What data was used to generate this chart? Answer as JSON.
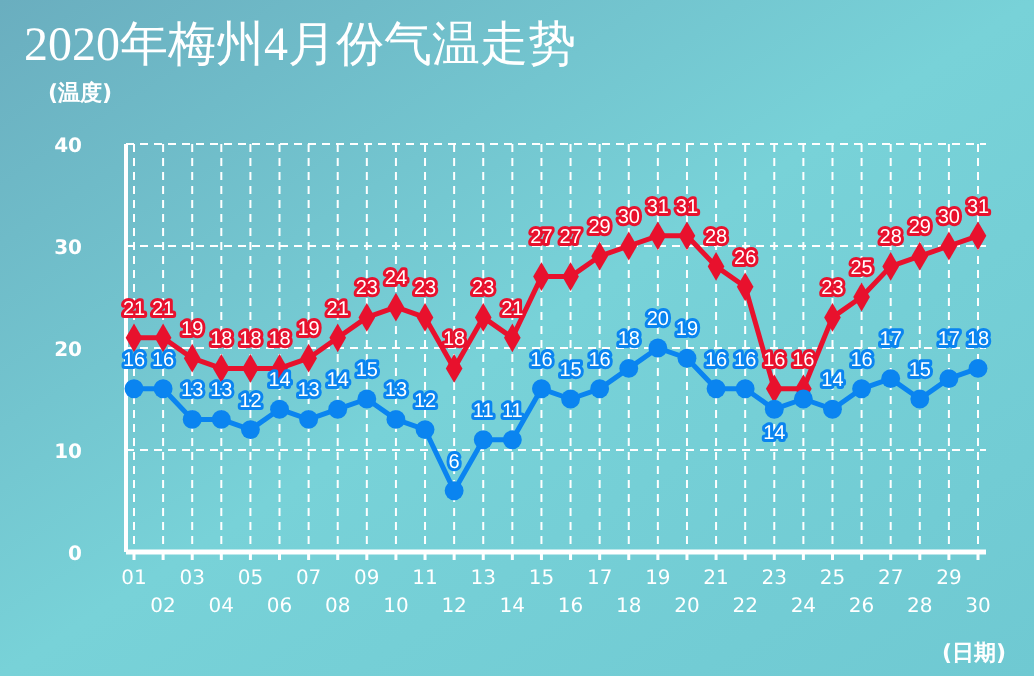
{
  "chart_data": {
    "type": "line",
    "title": "2020年梅州4月份气温走势",
    "ylabel": "(温度)",
    "xlabel": "(日期)",
    "categories": [
      "01",
      "02",
      "03",
      "04",
      "05",
      "06",
      "07",
      "08",
      "09",
      "10",
      "11",
      "12",
      "13",
      "14",
      "15",
      "16",
      "17",
      "18",
      "19",
      "20",
      "21",
      "22",
      "23",
      "24",
      "25",
      "26",
      "27",
      "28",
      "29",
      "30"
    ],
    "series": [
      {
        "color": "#e8112d",
        "marker": "diamond",
        "values": [
          21,
          21,
          19,
          18,
          18,
          18,
          19,
          21,
          23,
          24,
          23,
          18,
          23,
          21,
          27,
          27,
          29,
          30,
          31,
          31,
          28,
          26,
          16,
          16,
          23,
          25,
          28,
          29,
          30,
          31
        ],
        "value_labels": [
          "21",
          "21",
          "19",
          "18",
          "18",
          "18",
          "19",
          "21",
          "23",
          "24",
          "23",
          "18",
          "23",
          "21",
          "27",
          "27",
          "29",
          "30",
          "31",
          "31",
          "28",
          "26",
          "16",
          "16",
          "23",
          "25",
          "28",
          "29",
          "30",
          "31"
        ]
      },
      {
        "color": "#0a84f0",
        "marker": "circle",
        "values": [
          16,
          16,
          13,
          13,
          12,
          14,
          13,
          14,
          15,
          13,
          12,
          6,
          11,
          11,
          16,
          15,
          16,
          18,
          20,
          19,
          16,
          16,
          14,
          15,
          14,
          16,
          17,
          15,
          17,
          18
        ],
        "value_labels": [
          "16",
          "16",
          "13",
          "13",
          "12",
          "14",
          "13",
          "14",
          "15",
          "13",
          "12",
          "6",
          "11",
          "11",
          "16",
          "15",
          "16",
          "18",
          "20",
          "19",
          "16",
          "16",
          "14",
          null,
          "14",
          "16",
          "17",
          "15",
          "17",
          "18"
        ]
      }
    ],
    "ylim": [
      0,
      40
    ],
    "yticks": [
      0,
      10,
      20,
      30,
      40
    ],
    "grid": true,
    "line_style": "solid"
  }
}
